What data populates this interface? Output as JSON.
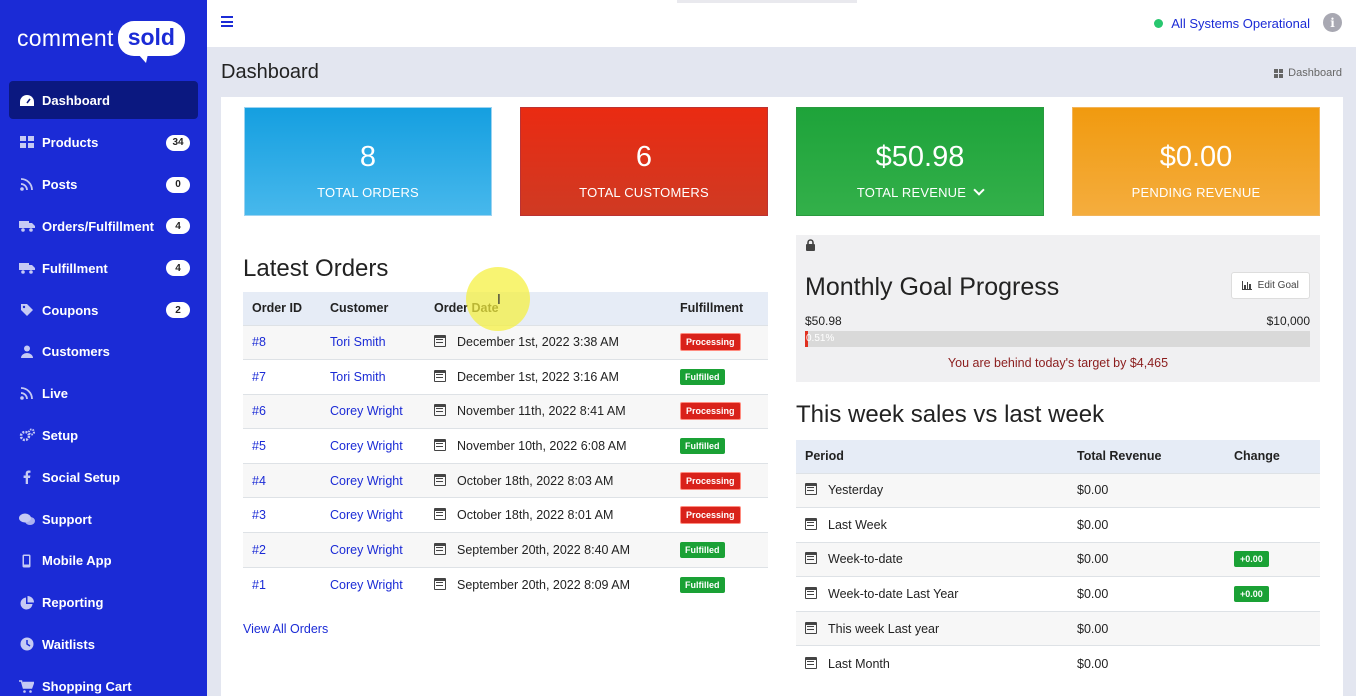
{
  "brand": {
    "word": "comment",
    "bubble": "sold"
  },
  "sidebar": {
    "items": [
      {
        "label": "Dashboard",
        "icon": "dashboard-icon",
        "badge": "",
        "active": true
      },
      {
        "label": "Products",
        "icon": "grid-icon",
        "badge": "34"
      },
      {
        "label": "Posts",
        "icon": "rss-icon",
        "badge": "0"
      },
      {
        "label": "Orders/Fulfillment",
        "icon": "truck-icon",
        "badge": "4"
      },
      {
        "label": "Fulfillment",
        "icon": "truck-icon",
        "badge": "4"
      },
      {
        "label": "Coupons",
        "icon": "tag-icon",
        "badge": "2"
      },
      {
        "label": "Customers",
        "icon": "user-icon",
        "badge": ""
      },
      {
        "label": "Live",
        "icon": "rss-icon",
        "badge": ""
      },
      {
        "label": "Setup",
        "icon": "gears-icon",
        "badge": ""
      },
      {
        "label": "Social Setup",
        "icon": "facebook-icon",
        "badge": ""
      },
      {
        "label": "Support",
        "icon": "chat-icon",
        "badge": ""
      },
      {
        "label": "Mobile App",
        "icon": "mobile-icon",
        "badge": ""
      },
      {
        "label": "Reporting",
        "icon": "pie-chart-icon",
        "badge": ""
      },
      {
        "label": "Waitlists",
        "icon": "clock-icon",
        "badge": ""
      },
      {
        "label": "Shopping Cart",
        "icon": "cart-icon",
        "badge": ""
      }
    ]
  },
  "topbar": {
    "status": "All Systems Operational",
    "info": "i"
  },
  "page": {
    "title": "Dashboard",
    "breadcrumb": "Dashboard"
  },
  "stats": [
    {
      "value": "8",
      "label": "TOTAL ORDERS"
    },
    {
      "value": "6",
      "label": "TOTAL CUSTOMERS"
    },
    {
      "value": "$50.98",
      "label": "TOTAL REVENUE"
    },
    {
      "value": "$0.00",
      "label": "PENDING REVENUE"
    }
  ],
  "latest_orders": {
    "title": "Latest Orders",
    "columns": [
      "Order ID",
      "Customer",
      "Order Date",
      "Fulfillment"
    ],
    "rows": [
      {
        "id": "#8",
        "customer": "Tori Smith",
        "date": "December 1st, 2022 3:38 AM",
        "status": "Processing"
      },
      {
        "id": "#7",
        "customer": "Tori Smith",
        "date": "December 1st, 2022 3:16 AM",
        "status": "Fulfilled"
      },
      {
        "id": "#6",
        "customer": "Corey Wright",
        "date": "November 11th, 2022 8:41 AM",
        "status": "Processing"
      },
      {
        "id": "#5",
        "customer": "Corey Wright",
        "date": "November 10th, 2022 6:08 AM",
        "status": "Fulfilled"
      },
      {
        "id": "#4",
        "customer": "Corey Wright",
        "date": "October 18th, 2022 8:03 AM",
        "status": "Processing"
      },
      {
        "id": "#3",
        "customer": "Corey Wright",
        "date": "October 18th, 2022 8:01 AM",
        "status": "Processing"
      },
      {
        "id": "#2",
        "customer": "Corey Wright",
        "date": "September 20th, 2022 8:40 AM",
        "status": "Fulfilled"
      },
      {
        "id": "#1",
        "customer": "Corey Wright",
        "date": "September 20th, 2022 8:09 AM",
        "status": "Fulfilled"
      }
    ],
    "view_all": "View All Orders"
  },
  "goal": {
    "title": "Monthly Goal Progress",
    "edit_label": "Edit Goal",
    "current": "$50.98",
    "target": "$10,000",
    "percent": 0.51,
    "percent_label": "0.51%",
    "message": "You are behind today's target by $4,465"
  },
  "weekly": {
    "title": "This week sales vs last week",
    "columns": [
      "Period",
      "Total Revenue",
      "Change"
    ],
    "rows": [
      {
        "period": "Yesterday",
        "revenue": "$0.00",
        "change": ""
      },
      {
        "period": "Last Week",
        "revenue": "$0.00",
        "change": ""
      },
      {
        "period": "Week-to-date",
        "revenue": "$0.00",
        "change": "+0.00"
      },
      {
        "period": "Week-to-date Last Year",
        "revenue": "$0.00",
        "change": "+0.00"
      },
      {
        "period": "This week Last year",
        "revenue": "$0.00",
        "change": ""
      },
      {
        "period": "Last Month",
        "revenue": "$0.00",
        "change": ""
      }
    ]
  },
  "colors": {
    "sidebar": "#1b2bd6",
    "active": "#0b1880",
    "blue": "#159fe0",
    "red": "#ea2b12",
    "green": "#1ea33a",
    "orange": "#f19a0f"
  }
}
